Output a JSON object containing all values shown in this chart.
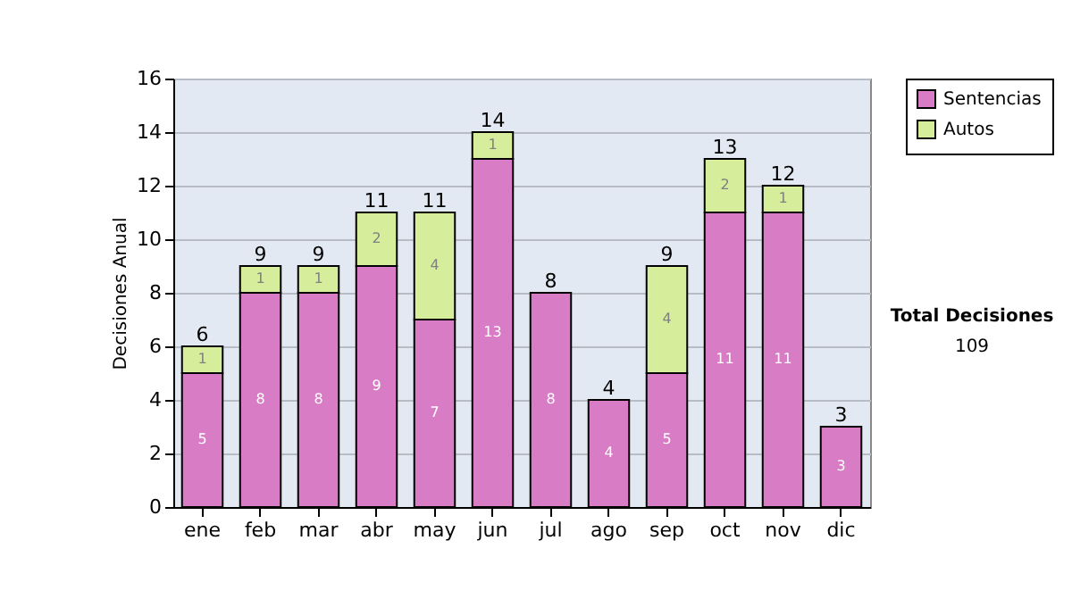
{
  "chart_data": {
    "type": "bar",
    "stacked": true,
    "ylabel": "Decisiones Anual",
    "categories": [
      "ene",
      "feb",
      "mar",
      "abr",
      "may",
      "jun",
      "jul",
      "ago",
      "sep",
      "oct",
      "nov",
      "dic"
    ],
    "series": [
      {
        "name": "Sentencias",
        "color": "#d87cc5",
        "values": [
          5,
          8,
          8,
          9,
          7,
          13,
          8,
          4,
          5,
          11,
          11,
          3
        ]
      },
      {
        "name": "Autos",
        "color": "#d6ee9b",
        "values": [
          1,
          1,
          1,
          2,
          4,
          1,
          null,
          null,
          4,
          2,
          1,
          null
        ]
      }
    ],
    "totals": [
      "6",
      "9",
      "9",
      "11",
      "11",
      "14",
      "8",
      "4",
      "9",
      "13",
      "12",
      "3"
    ],
    "ylim": [
      0,
      16
    ],
    "yticks": [
      0,
      2,
      4,
      6,
      8,
      10,
      12,
      14,
      16
    ],
    "grid": "y",
    "legend": "right",
    "data_labels": true,
    "annotations": [
      "Total Decisiones",
      "109"
    ]
  }
}
